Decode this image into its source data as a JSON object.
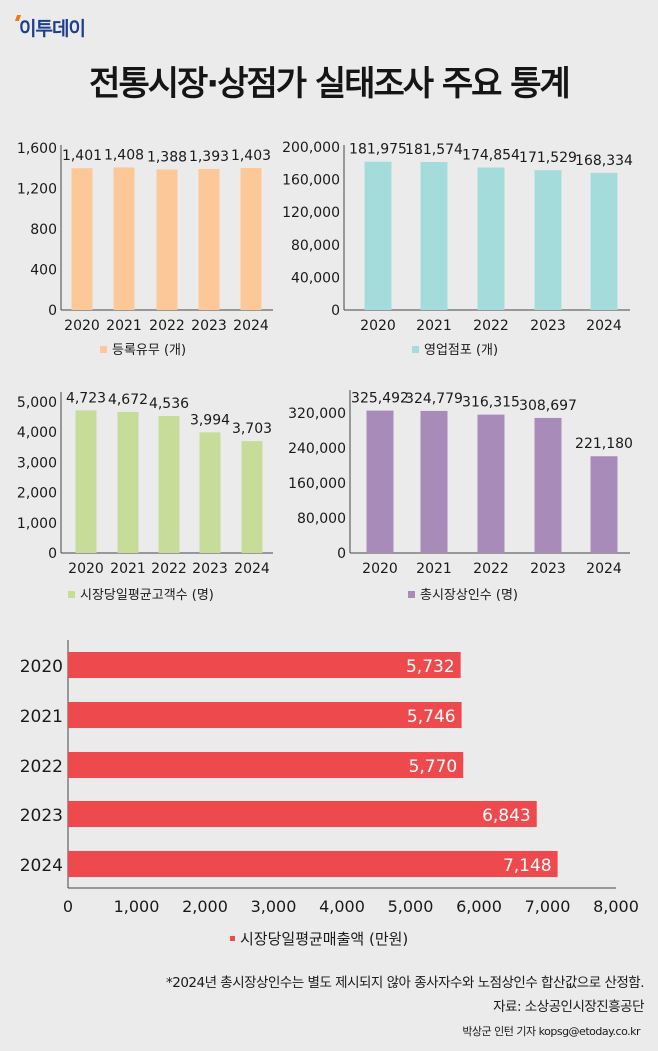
{
  "header": {
    "logo": "이투데이",
    "title": "전통시장·상점가 실태조사 주요 통계"
  },
  "colors": {
    "orange": "#fcc898",
    "teal": "#a4dcdb",
    "green": "#c6dc98",
    "purple": "#a98bba",
    "red": "#ee4a4e"
  },
  "chart_data": [
    {
      "type": "bar",
      "categories": [
        "2020",
        "2021",
        "2022",
        "2023",
        "2024"
      ],
      "values": [
        1401,
        1408,
        1388,
        1393,
        1403
      ],
      "labels": [
        "1,401",
        "1,408",
        "1,388",
        "1,393",
        "1,403"
      ],
      "yticks": [
        "0",
        "400",
        "800",
        "1,200",
        "1,600"
      ],
      "ytick_values": [
        0,
        400,
        800,
        1200,
        1600
      ],
      "ylim": [
        0,
        1600
      ],
      "legend": "등록유무 (개)",
      "color": "#fcc898",
      "legend_placement": "bottom"
    },
    {
      "type": "bar",
      "categories": [
        "2020",
        "2021",
        "2022",
        "2023",
        "2024"
      ],
      "values": [
        181975,
        181574,
        174854,
        171529,
        168334
      ],
      "labels": [
        "181,975",
        "181,574",
        "174,854",
        "171,529",
        "168,334"
      ],
      "yticks": [
        "0",
        "40,000",
        "80,000",
        "120,000",
        "160,000",
        "200,000"
      ],
      "ytick_values": [
        0,
        40000,
        80000,
        120000,
        160000,
        200000
      ],
      "ylim": [
        0,
        200000
      ],
      "legend": "영업점포 (개)",
      "color": "#a4dcdb",
      "legend_placement": "bottom"
    },
    {
      "type": "bar",
      "categories": [
        "2020",
        "2021",
        "2022",
        "2023",
        "2024"
      ],
      "values": [
        4723,
        4672,
        4536,
        3994,
        3703
      ],
      "labels": [
        "4,723",
        "4,672",
        "4,536",
        "3,994",
        "3,703"
      ],
      "yticks": [
        "0",
        "1,000",
        "2,000",
        "3,000",
        "4,000",
        "5,000"
      ],
      "ytick_values": [
        0,
        1000,
        2000,
        3000,
        4000,
        5000
      ],
      "ylim": [
        0,
        5000
      ],
      "legend": "시장당일평균고객수 (명)",
      "color": "#c6dc98",
      "legend_placement": "bottom"
    },
    {
      "type": "bar",
      "categories": [
        "2020",
        "2021",
        "2022",
        "2023",
        "2024"
      ],
      "values": [
        325492,
        324779,
        316315,
        308697,
        221180
      ],
      "labels": [
        "325,492",
        "324,779",
        "316,315",
        "308,697",
        "221,180"
      ],
      "yticks": [
        "0",
        "80,000",
        "160,000",
        "240,000",
        "320,000"
      ],
      "ytick_values": [
        0,
        80000,
        160000,
        240000,
        320000
      ],
      "ylim": [
        0,
        400000
      ],
      "legend": "총시장상인수 (명)",
      "color": "#a98bba",
      "legend_placement": "bottom"
    },
    {
      "type": "bar",
      "orientation": "horizontal",
      "categories": [
        "2020",
        "2021",
        "2022",
        "2023",
        "2024"
      ],
      "values": [
        5732,
        5746,
        5770,
        6843,
        7148
      ],
      "labels": [
        "5,732",
        "5,746",
        "5,770",
        "6,843",
        "7,148"
      ],
      "xticks": [
        "0",
        "1,000",
        "2,000",
        "3,000",
        "4,000",
        "5,000",
        "6,000",
        "7,000",
        "8,000"
      ],
      "xtick_values": [
        0,
        1000,
        2000,
        3000,
        4000,
        5000,
        6000,
        7000,
        8000
      ],
      "xlim": [
        0,
        8000
      ],
      "legend": "시장당일평균매출액 (만원)",
      "color": "#ee4a4e",
      "legend_placement": "bottom"
    }
  ],
  "footer": {
    "note": "*2024년 총시장상인수는 별도 제시되지 않아 종사자수와 노점상인수 합산값으로 산정함.",
    "source": "자료: 소상공인시장진흥공단",
    "credit": "박상군 인턴 기자 kopsg@etoday.co.kr"
  }
}
